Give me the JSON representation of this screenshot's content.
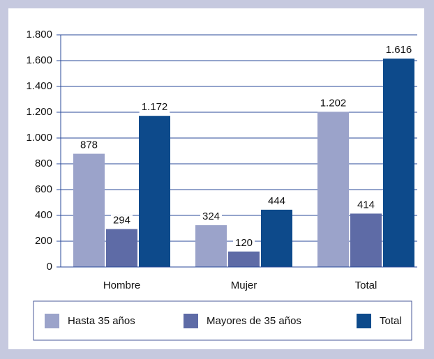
{
  "chart_data": {
    "type": "bar",
    "categories": [
      "Hombre",
      "Mujer",
      "Total"
    ],
    "series": [
      {
        "name": "Hasta 35 años",
        "color": "#9ba3ca",
        "values": [
          878,
          324,
          1202
        ],
        "value_labels": [
          "878",
          "324",
          "1.202"
        ]
      },
      {
        "name": "Mayores de 35 años",
        "color": "#5e6ba6",
        "values": [
          294,
          120,
          414
        ]
      },
      {
        "name": "Total",
        "color": "#0d4a8b",
        "values": [
          1172,
          444,
          1616
        ],
        "value_labels": [
          "1.172",
          "444",
          "1.616"
        ]
      }
    ],
    "ylim": [
      0,
      1800
    ],
    "yticks": [
      0,
      200,
      400,
      600,
      800,
      {
        "value": 1000,
        "label": "1.000"
      },
      {
        "value": 1200,
        "label": "1.200"
      },
      {
        "value": 1400,
        "label": "1.400"
      },
      {
        "value": 1600,
        "label": "1.600"
      },
      {
        "value": 1800,
        "label": "1.800"
      }
    ],
    "grid": true,
    "legend": "bottom"
  }
}
